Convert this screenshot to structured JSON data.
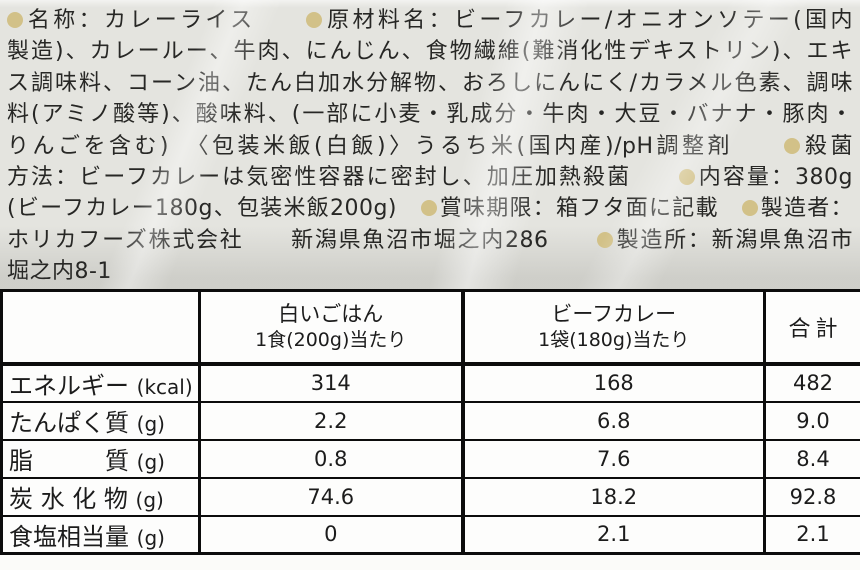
{
  "label_info": {
    "bullet_color": "#d2c188",
    "lines": [
      "●名称：カレーライス　　●原材料名：ビーフカレー/オニオンソテー(国内",
      "製造)、カレールー、牛肉、にんじん、食物繊維(難消化性デキストリン)、エキ",
      "ス調味料、コーン油、たん白加水分解物、おろしにんにく/カラメル色素、調味",
      "料(アミノ酸等)、酸味料、(一部に小麦・乳成分・牛肉・大豆・バナナ・豚肉・",
      "りんごを含む)　〈包装米飯(白飯)〉うるち米(国内産)/pH調整剤　　●殺菌",
      "方法：ビーフカレーは気密性容器に密封し、加圧加熱殺菌　　●内容量：380g",
      "(ビーフカレー180g、包装米飯200g)　●賞味期限：箱フタ面に記載　●製造者：",
      "ホリカフーズ株式会社　　新潟県魚沼市堀之内286　　●製造所：新潟県魚沼市",
      "堀之内8-1"
    ]
  },
  "nutrition_table": {
    "headers": [
      {
        "line1": "",
        "line2": ""
      },
      {
        "line1": "白いごはん",
        "line2": "1食(200g)当たり"
      },
      {
        "line1": "ビーフカレー",
        "line2": "1袋(180g)当たり"
      },
      {
        "line1": "合計",
        "line2": ""
      }
    ],
    "rows": [
      {
        "label": "エネルギー",
        "unit": "(kcal)",
        "values": [
          "314",
          "168",
          "482"
        ]
      },
      {
        "label": "たんぱく質",
        "unit": "(g)",
        "values": [
          "2.2",
          "6.8",
          "9.0"
        ]
      },
      {
        "label": "脂　　　質",
        "unit": "(g)",
        "values": [
          "0.8",
          "7.6",
          "8.4"
        ]
      },
      {
        "label": "炭 水 化 物",
        "unit": "(g)",
        "values": [
          "74.6",
          "18.2",
          "92.8"
        ]
      },
      {
        "label": "食塩相当量",
        "unit": "(g)",
        "values": [
          "0",
          "2.1",
          "2.1"
        ]
      }
    ]
  }
}
